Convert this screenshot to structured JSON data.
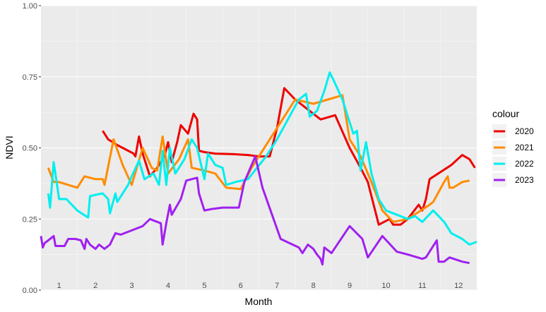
{
  "chart_data": {
    "type": "line",
    "xlabel": "Month",
    "ylabel": "NDVI",
    "ylim": [
      0,
      1
    ],
    "xlim": [
      0.5,
      12.5
    ],
    "y_ticks": [
      "0.00",
      "0.25",
      "0.50",
      "0.75",
      "1.00"
    ],
    "y_tick_values": [
      0,
      0.25,
      0.5,
      0.75,
      1.0
    ],
    "month_labels": [
      "1",
      "2",
      "3",
      "4",
      "5",
      "6",
      "7",
      "8",
      "9",
      "10",
      "11",
      "12"
    ],
    "grid": true,
    "legend": {
      "title": "colour",
      "placement": "right"
    },
    "series": [
      {
        "name": "2020",
        "color": "#ee0000",
        "points": [
          [
            2.2,
            0.56
          ],
          [
            2.35,
            0.53
          ],
          [
            2.6,
            0.51
          ],
          [
            2.9,
            0.49
          ],
          [
            3.05,
            0.48
          ],
          [
            3.1,
            0.47
          ],
          [
            3.2,
            0.54
          ],
          [
            3.3,
            0.48
          ],
          [
            3.5,
            0.4
          ],
          [
            3.7,
            0.43
          ],
          [
            3.9,
            0.47
          ],
          [
            4.0,
            0.52
          ],
          [
            4.1,
            0.45
          ],
          [
            4.25,
            0.52
          ],
          [
            4.35,
            0.58
          ],
          [
            4.55,
            0.55
          ],
          [
            4.7,
            0.62
          ],
          [
            4.8,
            0.6
          ],
          [
            4.85,
            0.49
          ],
          [
            5.0,
            0.485
          ],
          [
            5.3,
            0.48
          ],
          [
            5.8,
            0.478
          ],
          [
            6.2,
            0.475
          ],
          [
            6.5,
            0.47
          ],
          [
            6.8,
            0.47
          ],
          [
            7.0,
            0.57
          ],
          [
            7.2,
            0.71
          ],
          [
            7.5,
            0.67
          ],
          [
            7.8,
            0.64
          ],
          [
            8.2,
            0.6
          ],
          [
            8.6,
            0.615
          ],
          [
            9.0,
            0.5
          ],
          [
            9.3,
            0.43
          ],
          [
            9.5,
            0.38
          ],
          [
            9.6,
            0.33
          ],
          [
            9.8,
            0.23
          ],
          [
            10.1,
            0.25
          ],
          [
            10.2,
            0.23
          ],
          [
            10.4,
            0.23
          ],
          [
            10.6,
            0.25
          ],
          [
            10.9,
            0.3
          ],
          [
            11.0,
            0.28
          ],
          [
            11.1,
            0.32
          ],
          [
            11.2,
            0.39
          ],
          [
            11.8,
            0.44
          ],
          [
            12.1,
            0.475
          ],
          [
            12.3,
            0.46
          ],
          [
            12.45,
            0.43
          ]
        ]
      },
      {
        "name": "2021",
        "color": "#ff8c00",
        "points": [
          [
            0.7,
            0.43
          ],
          [
            0.85,
            0.38
          ],
          [
            1.0,
            0.38
          ],
          [
            1.5,
            0.36
          ],
          [
            1.7,
            0.4
          ],
          [
            2.0,
            0.39
          ],
          [
            2.2,
            0.39
          ],
          [
            2.25,
            0.37
          ],
          [
            2.5,
            0.53
          ],
          [
            2.75,
            0.44
          ],
          [
            3.0,
            0.37
          ],
          [
            3.3,
            0.5
          ],
          [
            3.55,
            0.43
          ],
          [
            3.7,
            0.42
          ],
          [
            3.85,
            0.54
          ],
          [
            4.0,
            0.41
          ],
          [
            4.3,
            0.46
          ],
          [
            4.55,
            0.53
          ],
          [
            4.65,
            0.43
          ],
          [
            5.0,
            0.42
          ],
          [
            5.3,
            0.41
          ],
          [
            5.6,
            0.36
          ],
          [
            6.0,
            0.355
          ],
          [
            6.3,
            0.43
          ],
          [
            7.0,
            0.57
          ],
          [
            7.5,
            0.67
          ],
          [
            8.0,
            0.655
          ],
          [
            8.4,
            0.67
          ],
          [
            8.8,
            0.685
          ],
          [
            9.0,
            0.53
          ],
          [
            9.3,
            0.47
          ],
          [
            9.6,
            0.38
          ],
          [
            9.9,
            0.28
          ],
          [
            10.2,
            0.24
          ],
          [
            10.6,
            0.25
          ],
          [
            11.2,
            0.3
          ],
          [
            11.3,
            0.31
          ],
          [
            11.6,
            0.38
          ],
          [
            11.7,
            0.4
          ],
          [
            11.75,
            0.36
          ],
          [
            11.85,
            0.36
          ],
          [
            12.1,
            0.38
          ],
          [
            12.3,
            0.385
          ]
        ]
      },
      {
        "name": "2022",
        "color": "#00eeee",
        "points": [
          [
            0.7,
            0.34
          ],
          [
            0.75,
            0.29
          ],
          [
            0.85,
            0.45
          ],
          [
            1.0,
            0.32
          ],
          [
            1.2,
            0.32
          ],
          [
            1.5,
            0.28
          ],
          [
            1.8,
            0.255
          ],
          [
            1.85,
            0.33
          ],
          [
            2.0,
            0.335
          ],
          [
            2.2,
            0.34
          ],
          [
            2.35,
            0.32
          ],
          [
            2.4,
            0.27
          ],
          [
            2.55,
            0.34
          ],
          [
            2.6,
            0.31
          ],
          [
            2.9,
            0.37
          ],
          [
            3.0,
            0.4
          ],
          [
            3.2,
            0.455
          ],
          [
            3.35,
            0.39
          ],
          [
            3.6,
            0.41
          ],
          [
            3.75,
            0.37
          ],
          [
            3.85,
            0.49
          ],
          [
            3.95,
            0.37
          ],
          [
            4.05,
            0.5
          ],
          [
            4.2,
            0.41
          ],
          [
            4.45,
            0.46
          ],
          [
            4.65,
            0.53
          ],
          [
            4.8,
            0.5
          ],
          [
            5.0,
            0.39
          ],
          [
            5.1,
            0.48
          ],
          [
            5.3,
            0.44
          ],
          [
            5.5,
            0.43
          ],
          [
            5.6,
            0.37
          ],
          [
            5.85,
            0.38
          ],
          [
            6.2,
            0.39
          ],
          [
            6.7,
            0.47
          ],
          [
            7.0,
            0.53
          ],
          [
            7.3,
            0.6
          ],
          [
            7.6,
            0.67
          ],
          [
            7.8,
            0.69
          ],
          [
            7.9,
            0.61
          ],
          [
            8.1,
            0.63
          ],
          [
            8.3,
            0.7
          ],
          [
            8.45,
            0.765
          ],
          [
            8.55,
            0.74
          ],
          [
            8.8,
            0.67
          ],
          [
            9.0,
            0.59
          ],
          [
            9.1,
            0.55
          ],
          [
            9.2,
            0.56
          ],
          [
            9.3,
            0.42
          ],
          [
            9.45,
            0.52
          ],
          [
            9.6,
            0.41
          ],
          [
            9.8,
            0.32
          ],
          [
            10.0,
            0.28
          ],
          [
            10.3,
            0.265
          ],
          [
            10.6,
            0.25
          ],
          [
            10.8,
            0.26
          ],
          [
            11.0,
            0.24
          ],
          [
            11.3,
            0.28
          ],
          [
            11.6,
            0.24
          ],
          [
            11.8,
            0.2
          ],
          [
            12.1,
            0.18
          ],
          [
            12.3,
            0.16
          ],
          [
            12.5,
            0.17
          ]
        ]
      },
      {
        "name": "2023",
        "color": "#a020f0",
        "points": [
          [
            0.5,
            0.19
          ],
          [
            0.55,
            0.15
          ],
          [
            0.6,
            0.165
          ],
          [
            0.75,
            0.18
          ],
          [
            0.85,
            0.19
          ],
          [
            0.9,
            0.155
          ],
          [
            1.0,
            0.155
          ],
          [
            1.15,
            0.155
          ],
          [
            1.25,
            0.18
          ],
          [
            1.45,
            0.18
          ],
          [
            1.6,
            0.175
          ],
          [
            1.7,
            0.145
          ],
          [
            1.75,
            0.18
          ],
          [
            1.85,
            0.16
          ],
          [
            2.0,
            0.145
          ],
          [
            2.1,
            0.16
          ],
          [
            2.25,
            0.145
          ],
          [
            2.4,
            0.16
          ],
          [
            2.55,
            0.2
          ],
          [
            2.7,
            0.195
          ],
          [
            3.0,
            0.21
          ],
          [
            3.3,
            0.225
          ],
          [
            3.5,
            0.25
          ],
          [
            3.8,
            0.235
          ],
          [
            3.85,
            0.16
          ],
          [
            3.95,
            0.235
          ],
          [
            4.05,
            0.3
          ],
          [
            4.1,
            0.265
          ],
          [
            4.35,
            0.32
          ],
          [
            4.5,
            0.385
          ],
          [
            4.8,
            0.395
          ],
          [
            4.85,
            0.34
          ],
          [
            5.0,
            0.28
          ],
          [
            5.2,
            0.285
          ],
          [
            5.5,
            0.29
          ],
          [
            5.8,
            0.29
          ],
          [
            5.95,
            0.29
          ],
          [
            6.1,
            0.38
          ],
          [
            6.4,
            0.47
          ],
          [
            6.6,
            0.36
          ],
          [
            7.1,
            0.18
          ],
          [
            7.6,
            0.15
          ],
          [
            7.7,
            0.13
          ],
          [
            7.85,
            0.16
          ],
          [
            8.0,
            0.145
          ],
          [
            8.1,
            0.125
          ],
          [
            8.2,
            0.11
          ],
          [
            8.25,
            0.09
          ],
          [
            8.3,
            0.15
          ],
          [
            8.5,
            0.13
          ],
          [
            9.0,
            0.225
          ],
          [
            9.35,
            0.18
          ],
          [
            9.5,
            0.115
          ],
          [
            9.9,
            0.19
          ],
          [
            10.3,
            0.135
          ],
          [
            10.6,
            0.125
          ],
          [
            11.0,
            0.11
          ],
          [
            11.1,
            0.115
          ],
          [
            11.4,
            0.175
          ],
          [
            11.45,
            0.1
          ],
          [
            11.6,
            0.1
          ],
          [
            11.75,
            0.115
          ],
          [
            12.1,
            0.1
          ],
          [
            12.3,
            0.095
          ]
        ]
      }
    ]
  }
}
